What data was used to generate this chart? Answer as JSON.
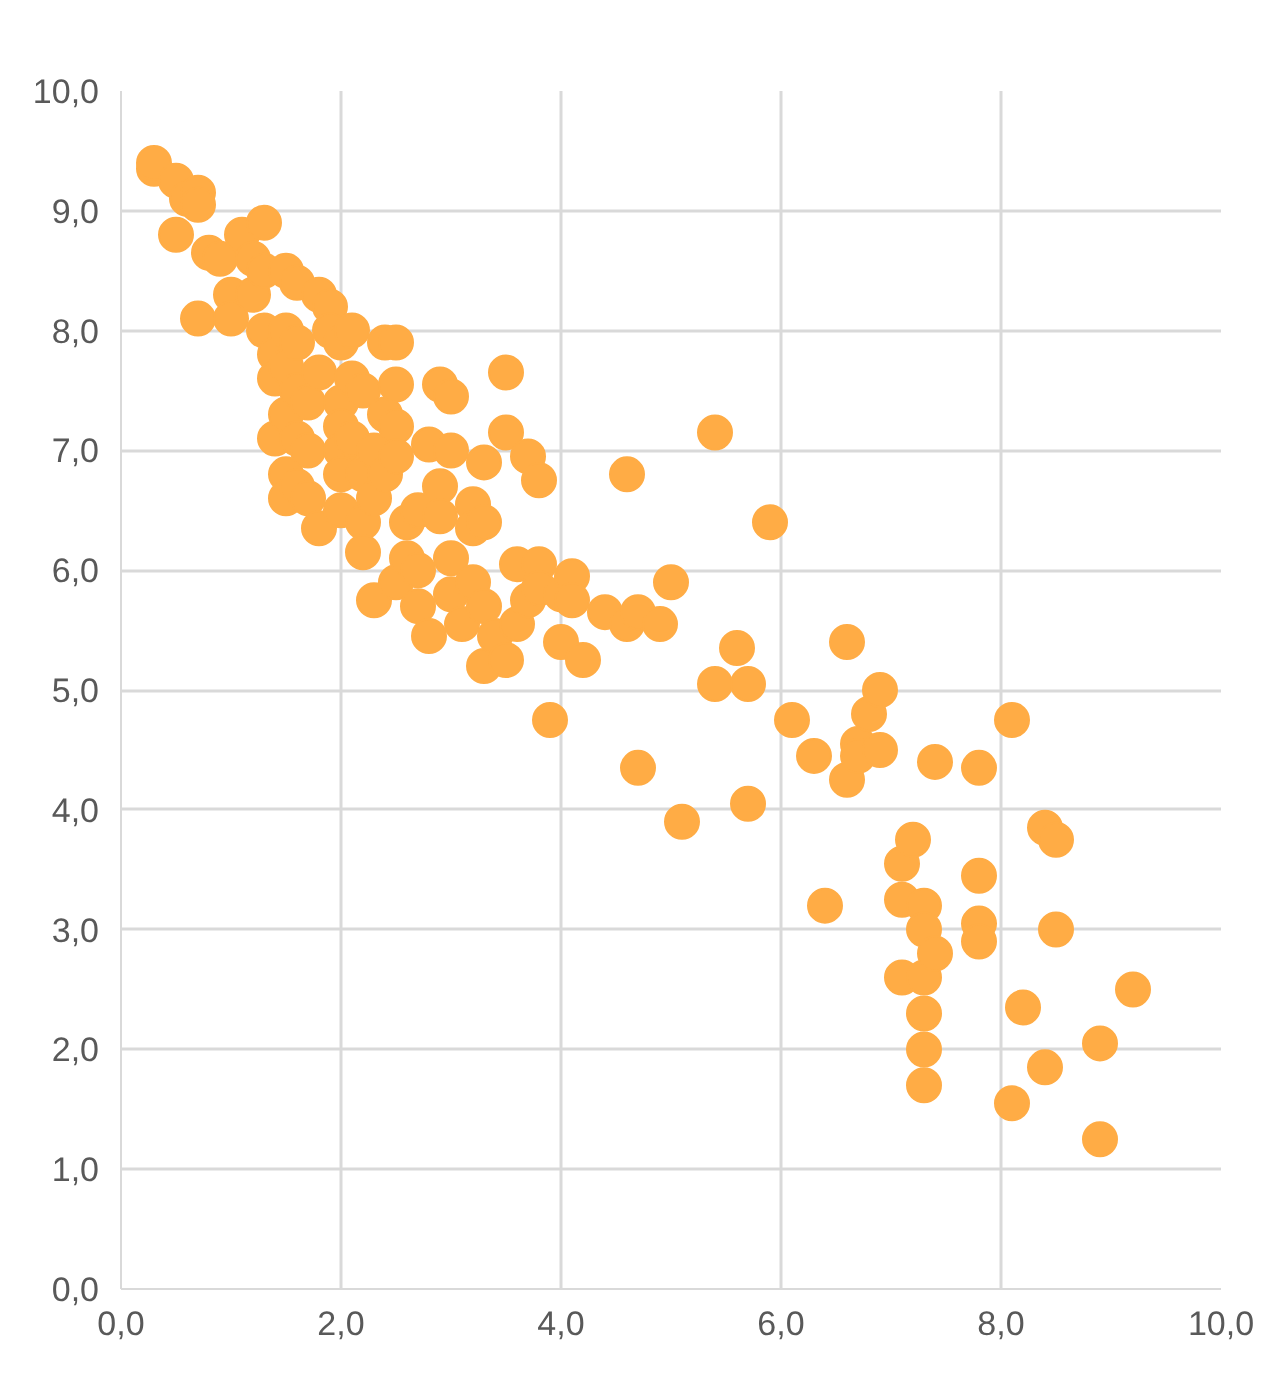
{
  "chart_data": {
    "type": "scatter",
    "marker": "circle",
    "grid": true,
    "xlim": [
      0,
      10
    ],
    "ylim": [
      0,
      10
    ],
    "xticks": [
      {
        "value": 0,
        "label": "0,0"
      },
      {
        "value": 2,
        "label": "2,0"
      },
      {
        "value": 4,
        "label": "4,0"
      },
      {
        "value": 6,
        "label": "6,0"
      },
      {
        "value": 8,
        "label": "8,0"
      },
      {
        "value": 10,
        "label": "10,0"
      }
    ],
    "yticks": [
      {
        "value": 0,
        "label": "0,0"
      },
      {
        "value": 1,
        "label": "1,0"
      },
      {
        "value": 2,
        "label": "2,0"
      },
      {
        "value": 3,
        "label": "3,0"
      },
      {
        "value": 4,
        "label": "4,0"
      },
      {
        "value": 5,
        "label": "5,0"
      },
      {
        "value": 6,
        "label": "6,0"
      },
      {
        "value": 7,
        "label": "7,0"
      },
      {
        "value": 8,
        "label": "8,0"
      },
      {
        "value": 9,
        "label": "9,0"
      },
      {
        "value": 10,
        "label": "10,0"
      }
    ],
    "series": [
      {
        "color": "#ffac45",
        "x": [
          0.3,
          0.3,
          0.5,
          0.6,
          0.7,
          0.7,
          0.5,
          0.7,
          0.8,
          0.9,
          1.0,
          1.0,
          1.1,
          1.2,
          1.2,
          1.3,
          1.3,
          1.3,
          1.4,
          1.4,
          1.4,
          1.5,
          1.5,
          1.5,
          1.5,
          1.5,
          1.5,
          1.6,
          1.6,
          1.6,
          1.6,
          1.6,
          1.7,
          1.7,
          1.7,
          1.8,
          1.8,
          1.8,
          1.9,
          1.9,
          2.0,
          2.0,
          2.0,
          2.0,
          2.0,
          2.0,
          2.1,
          2.1,
          2.1,
          2.2,
          2.2,
          2.2,
          2.2,
          2.3,
          2.3,
          2.3,
          2.4,
          2.4,
          2.4,
          2.5,
          2.5,
          2.5,
          2.5,
          2.5,
          2.6,
          2.6,
          2.7,
          2.7,
          2.7,
          2.8,
          2.8,
          2.9,
          2.9,
          2.9,
          3.0,
          3.0,
          3.0,
          3.0,
          3.1,
          3.2,
          3.2,
          3.2,
          3.3,
          3.3,
          3.3,
          3.3,
          3.4,
          3.5,
          3.5,
          3.5,
          3.6,
          3.6,
          3.7,
          3.7,
          3.8,
          3.8,
          3.8,
          3.9,
          4.0,
          4.0,
          4.1,
          4.1,
          4.2,
          4.4,
          4.6,
          4.6,
          4.7,
          4.7,
          4.9,
          5.0,
          5.1,
          5.4,
          5.4,
          5.6,
          5.7,
          5.7,
          5.9,
          6.1,
          6.3,
          6.4,
          6.6,
          6.6,
          6.7,
          6.7,
          6.8,
          6.9,
          6.9,
          7.1,
          7.1,
          7.1,
          7.2,
          7.3,
          7.3,
          7.3,
          7.3,
          7.3,
          7.3,
          7.4,
          7.4,
          7.8,
          7.8,
          7.8,
          7.8,
          8.1,
          8.1,
          8.2,
          8.4,
          8.4,
          8.5,
          8.5,
          8.9,
          8.9,
          9.2
        ],
        "values": [
          9.35,
          9.4,
          9.25,
          9.1,
          9.15,
          9.05,
          8.8,
          8.1,
          8.65,
          8.6,
          8.3,
          8.1,
          8.8,
          8.6,
          8.3,
          8.9,
          8.5,
          8.0,
          7.8,
          7.6,
          7.1,
          8.5,
          8.0,
          7.7,
          7.3,
          6.8,
          6.6,
          8.4,
          7.9,
          7.5,
          7.1,
          6.7,
          7.4,
          7.0,
          6.6,
          8.3,
          7.65,
          6.35,
          8.2,
          8.0,
          7.9,
          7.4,
          7.2,
          7.0,
          6.8,
          6.5,
          8.0,
          7.6,
          7.1,
          7.5,
          6.8,
          6.4,
          6.15,
          7.0,
          6.6,
          5.75,
          7.9,
          7.3,
          6.8,
          7.9,
          7.55,
          7.2,
          6.95,
          5.9,
          6.4,
          6.1,
          6.5,
          6.0,
          5.7,
          7.05,
          5.45,
          7.55,
          6.7,
          6.45,
          7.45,
          7.0,
          6.1,
          5.8,
          5.55,
          6.55,
          6.35,
          5.9,
          6.9,
          6.4,
          5.7,
          5.2,
          5.45,
          7.65,
          7.15,
          5.25,
          6.05,
          5.55,
          6.95,
          5.75,
          6.75,
          6.05,
          5.85,
          4.75,
          5.4,
          5.8,
          5.95,
          5.75,
          5.25,
          5.65,
          6.8,
          5.55,
          5.65,
          4.35,
          5.55,
          5.9,
          3.9,
          7.15,
          5.05,
          5.35,
          5.05,
          4.05,
          6.4,
          4.75,
          4.45,
          3.2,
          5.4,
          4.25,
          4.55,
          4.45,
          4.8,
          5.0,
          4.5,
          3.55,
          3.25,
          2.6,
          3.75,
          3.2,
          3.0,
          2.6,
          2.3,
          2.0,
          1.7,
          4.4,
          2.8,
          4.35,
          3.45,
          3.05,
          2.9,
          4.75,
          1.55,
          2.35,
          3.85,
          1.85,
          3.75,
          3.0,
          2.05,
          1.25,
          2.5
        ]
      }
    ]
  }
}
